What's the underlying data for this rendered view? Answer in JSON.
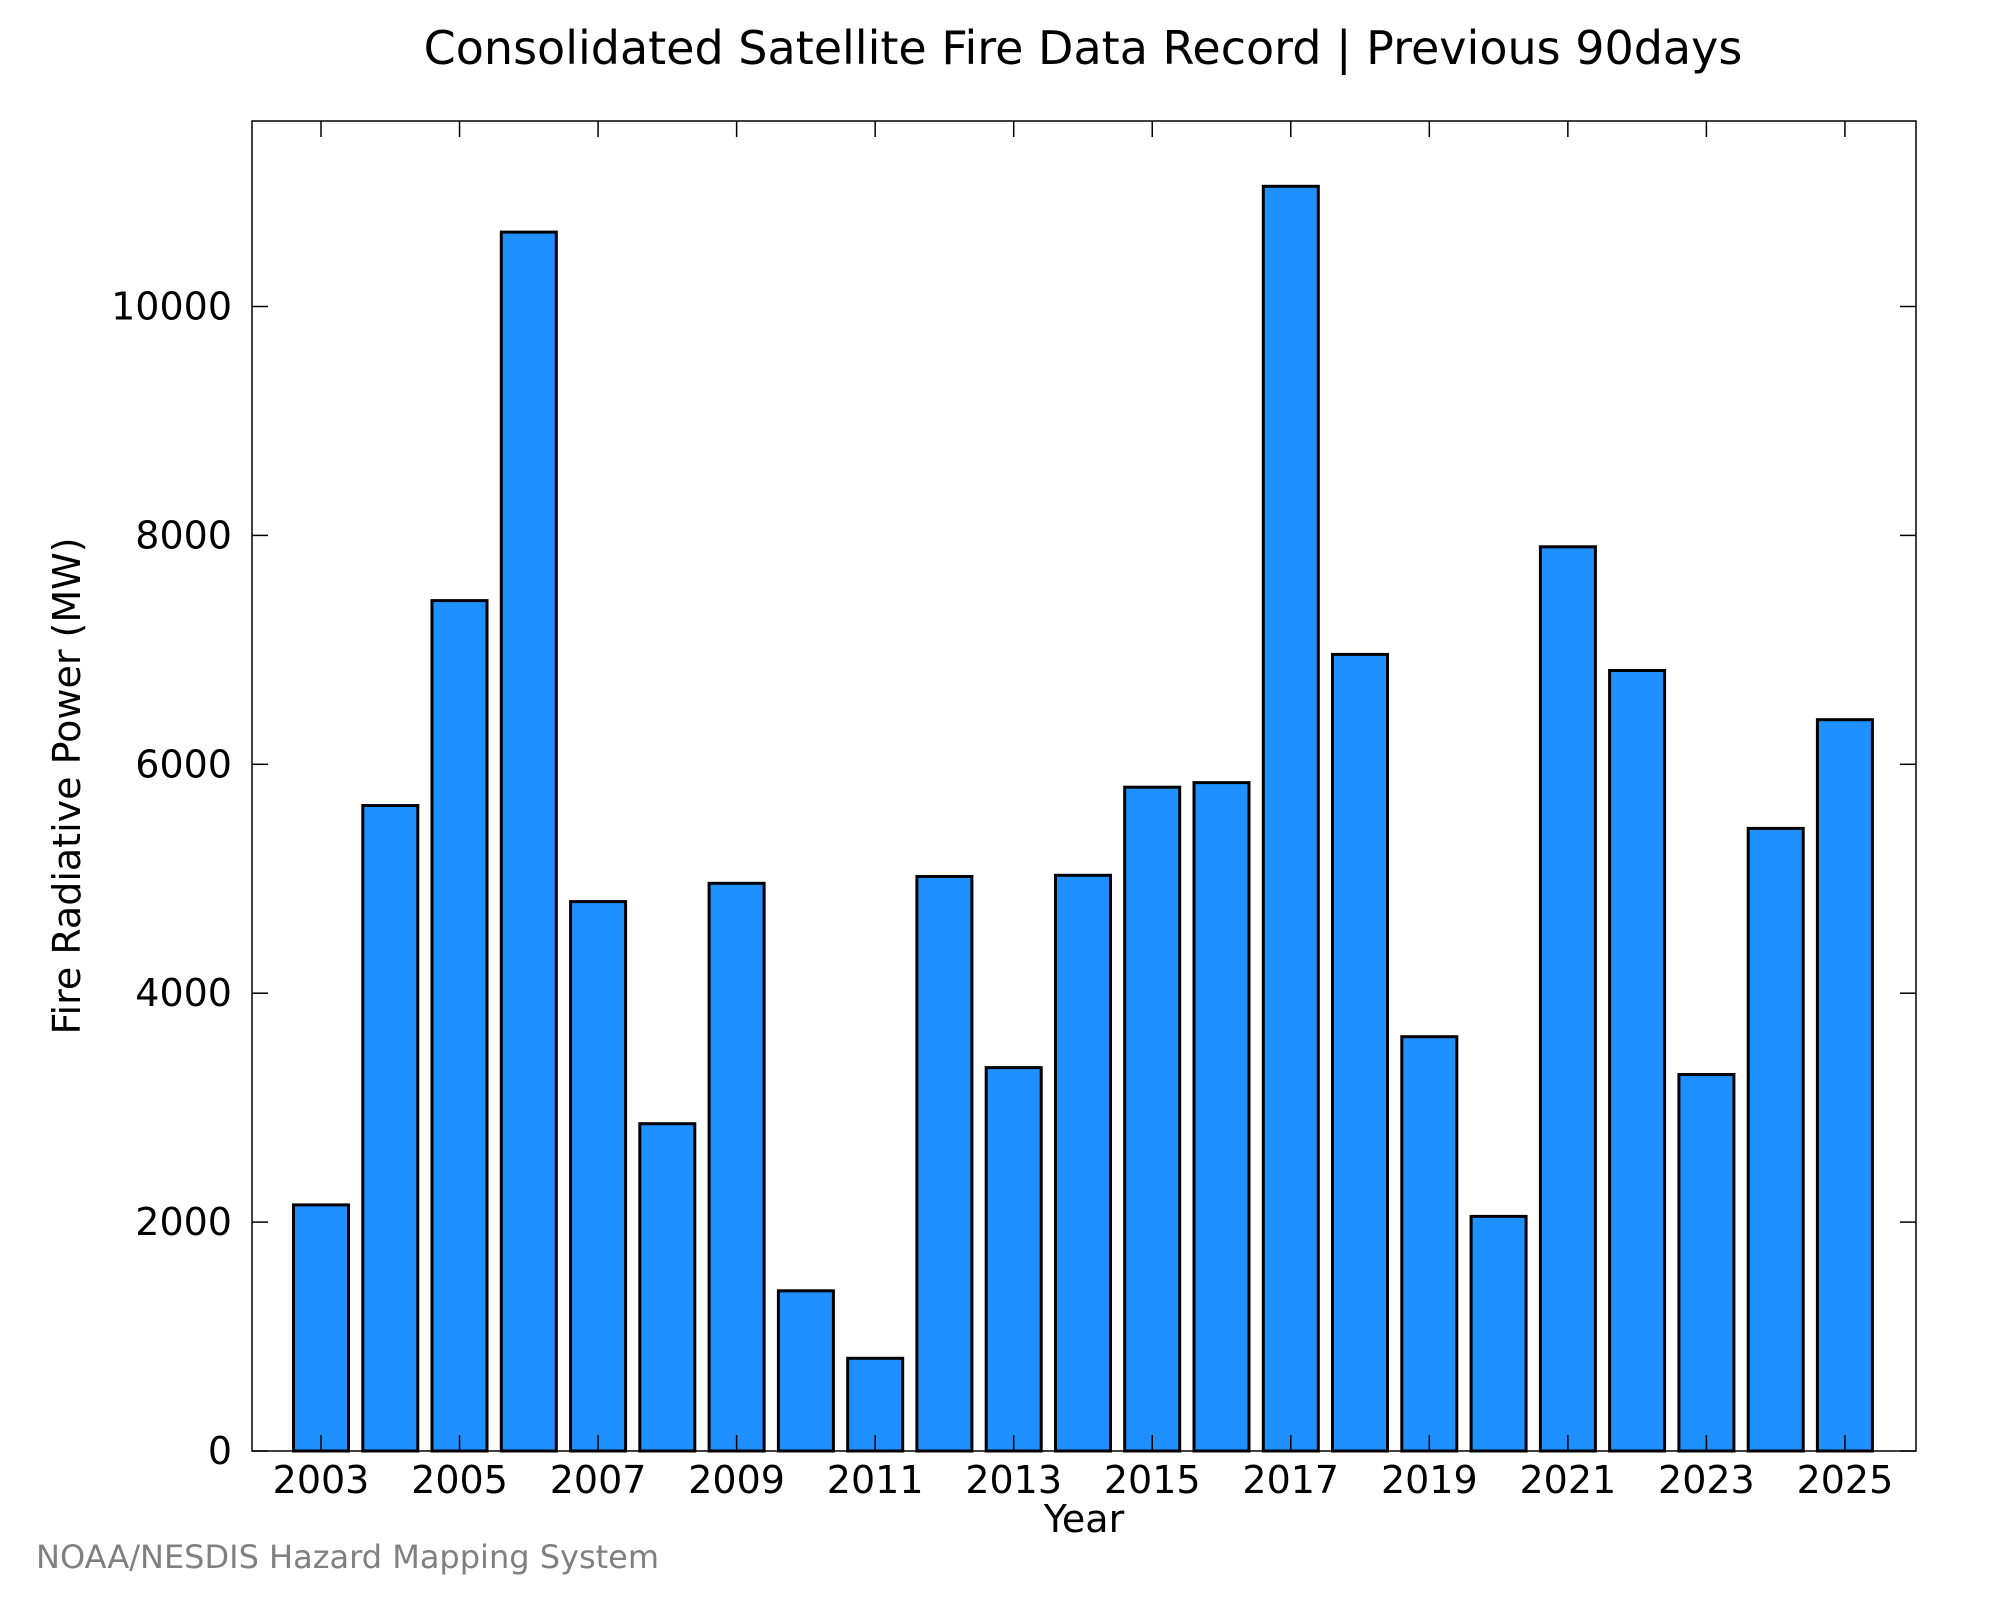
{
  "chart_data": {
    "type": "bar",
    "title": "Consolidated Satellite Fire Data Record | Previous 90days",
    "xlabel": "Year",
    "ylabel": "Fire Radiative Power (MW)",
    "categories": [
      "2003",
      "2004",
      "2005",
      "2006",
      "2007",
      "2008",
      "2009",
      "2010",
      "2011",
      "2012",
      "2013",
      "2014",
      "2015",
      "2016",
      "2017",
      "2018",
      "2019",
      "2020",
      "2021",
      "2022",
      "2023",
      "2024",
      "2025"
    ],
    "values": [
      2150,
      5640,
      7430,
      10650,
      4800,
      2860,
      4960,
      1400,
      810,
      5020,
      3350,
      5030,
      5800,
      5840,
      11050,
      6960,
      3620,
      2050,
      7900,
      6820,
      3290,
      5440,
      6390
    ],
    "x_tick_labels": [
      "2003",
      "2005",
      "2007",
      "2009",
      "2011",
      "2013",
      "2015",
      "2017",
      "2019",
      "2021",
      "2023",
      "2025"
    ],
    "y_tick_labels": [
      "0",
      "2000",
      "4000",
      "6000",
      "8000",
      "10000"
    ],
    "ylim": [
      0,
      11600
    ],
    "grid": false,
    "bar_color": "#1e90ff",
    "bar_edge_color": "#000000"
  },
  "footer": {
    "credit": "NOAA/NESDIS Hazard Mapping System"
  }
}
